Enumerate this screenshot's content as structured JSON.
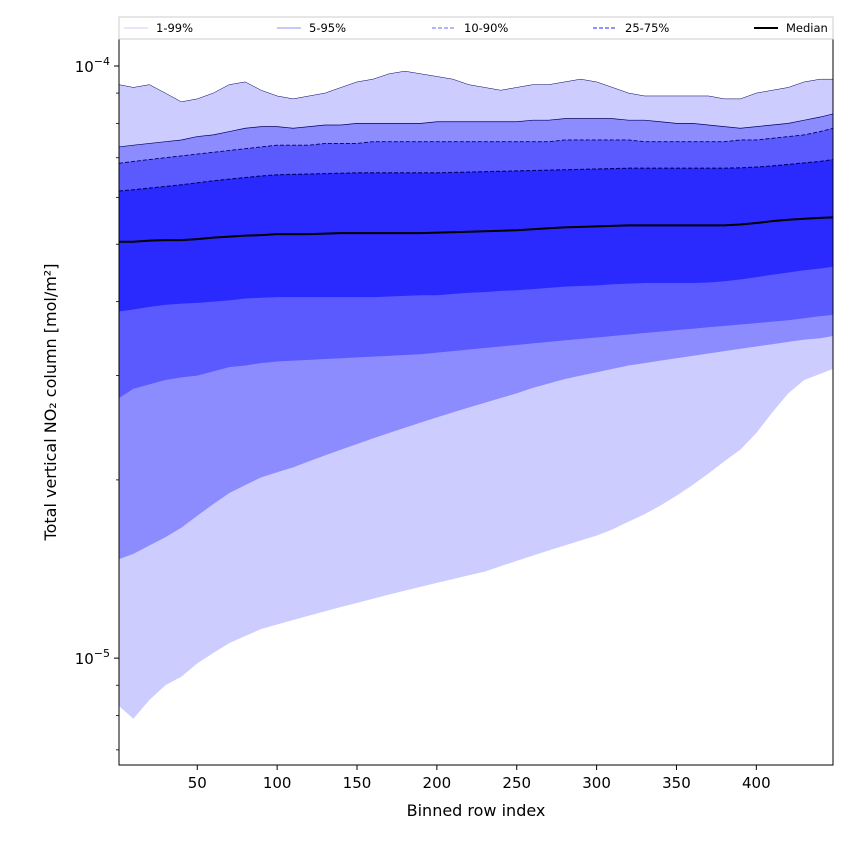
{
  "chart_data": {
    "type": "area",
    "title": "",
    "xlabel": "Binned row index",
    "ylabel": "Total vertical NO₂ column [mol/m²]",
    "xscale": "linear",
    "yscale": "log",
    "xlim": [
      1,
      448
    ],
    "ylim": [
      6.6e-06,
      0.0001115
    ],
    "x_ticks": [
      50,
      100,
      150,
      200,
      250,
      300,
      350,
      400
    ],
    "y_major_ticks": [
      {
        "value": 1e-05,
        "base": "10",
        "exp": "−5"
      },
      {
        "value": 0.0001,
        "base": "10",
        "exp": "−4"
      }
    ],
    "y_minor_ticks": [
      7e-06,
      8e-06,
      9e-06,
      2e-05,
      3e-05,
      4e-05,
      5e-05,
      6e-05,
      7e-05,
      8e-05,
      9e-05
    ],
    "grid": false,
    "legend": {
      "position": "top",
      "entries": [
        {
          "label": "1-99%",
          "color": "#d6d6ff",
          "style": "solid"
        },
        {
          "label": "5-95%",
          "color": "#a8a8ff",
          "style": "solid"
        },
        {
          "label": "10-90%",
          "color": "#8888ff",
          "style": "dashed"
        },
        {
          "label": "25-75%",
          "color": "#5555ff",
          "style": "dashed"
        },
        {
          "label": "Median",
          "color": "#000000",
          "style": "solid"
        }
      ]
    },
    "x": [
      1,
      10,
      20,
      30,
      40,
      50,
      60,
      70,
      80,
      90,
      100,
      110,
      120,
      130,
      140,
      150,
      160,
      170,
      180,
      190,
      200,
      210,
      220,
      230,
      240,
      250,
      260,
      270,
      280,
      290,
      300,
      310,
      320,
      330,
      340,
      350,
      360,
      370,
      380,
      390,
      400,
      410,
      420,
      430,
      440,
      448
    ],
    "bands": [
      {
        "name": "1-99%",
        "color": "#ccccff",
        "lower": [
          8.3e-06,
          7.9e-06,
          8.5e-06,
          9e-06,
          9.3e-06,
          9.8e-06,
          1.02e-05,
          1.06e-05,
          1.09e-05,
          1.12e-05,
          1.14e-05,
          1.16e-05,
          1.18e-05,
          1.2e-05,
          1.22e-05,
          1.24e-05,
          1.26e-05,
          1.28e-05,
          1.3e-05,
          1.32e-05,
          1.34e-05,
          1.36e-05,
          1.38e-05,
          1.4e-05,
          1.43e-05,
          1.46e-05,
          1.49e-05,
          1.52e-05,
          1.55e-05,
          1.58e-05,
          1.61e-05,
          1.65e-05,
          1.7e-05,
          1.75e-05,
          1.81e-05,
          1.88e-05,
          1.96e-05,
          2.05e-05,
          2.15e-05,
          2.25e-05,
          2.4e-05,
          2.6e-05,
          2.8e-05,
          2.95e-05,
          3.02e-05,
          3.08e-05
        ],
        "upper": [
          9.3e-05,
          9.2e-05,
          9.3e-05,
          9e-05,
          8.7e-05,
          8.8e-05,
          9e-05,
          9.3e-05,
          9.4e-05,
          9.1e-05,
          8.9e-05,
          8.8e-05,
          8.9e-05,
          9e-05,
          9.2e-05,
          9.4e-05,
          9.5e-05,
          9.7e-05,
          9.8e-05,
          9.7e-05,
          9.6e-05,
          9.5e-05,
          9.3e-05,
          9.2e-05,
          9.1e-05,
          9.2e-05,
          9.3e-05,
          9.3e-05,
          9.4e-05,
          9.5e-05,
          9.4e-05,
          9.2e-05,
          9e-05,
          8.9e-05,
          8.9e-05,
          8.9e-05,
          8.9e-05,
          8.9e-05,
          8.8e-05,
          8.8e-05,
          9e-05,
          9.1e-05,
          9.2e-05,
          9.4e-05,
          9.5e-05,
          9.5e-05
        ]
      },
      {
        "name": "5-95%",
        "color": "#8c8cff",
        "lower": [
          1.47e-05,
          1.5e-05,
          1.55e-05,
          1.6e-05,
          1.66e-05,
          1.74e-05,
          1.82e-05,
          1.9e-05,
          1.96e-05,
          2.02e-05,
          2.06e-05,
          2.1e-05,
          2.15e-05,
          2.2e-05,
          2.25e-05,
          2.3e-05,
          2.35e-05,
          2.4e-05,
          2.45e-05,
          2.5e-05,
          2.55e-05,
          2.6e-05,
          2.65e-05,
          2.7e-05,
          2.75e-05,
          2.8e-05,
          2.86e-05,
          2.91e-05,
          2.96e-05,
          3e-05,
          3.04e-05,
          3.08e-05,
          3.12e-05,
          3.15e-05,
          3.18e-05,
          3.21e-05,
          3.24e-05,
          3.27e-05,
          3.3e-05,
          3.33e-05,
          3.36e-05,
          3.39e-05,
          3.42e-05,
          3.45e-05,
          3.47e-05,
          3.5e-05
        ],
        "upper": [
          7.3e-05,
          7.35e-05,
          7.4e-05,
          7.45e-05,
          7.5e-05,
          7.6e-05,
          7.65e-05,
          7.75e-05,
          7.85e-05,
          7.9e-05,
          7.9e-05,
          7.85e-05,
          7.9e-05,
          7.95e-05,
          7.95e-05,
          8e-05,
          8e-05,
          8e-05,
          8e-05,
          8e-05,
          8.05e-05,
          8.05e-05,
          8.05e-05,
          8.05e-05,
          8.05e-05,
          8.05e-05,
          8.1e-05,
          8.1e-05,
          8.15e-05,
          8.15e-05,
          8.15e-05,
          8.15e-05,
          8.1e-05,
          8.1e-05,
          8.05e-05,
          8e-05,
          8e-05,
          7.95e-05,
          7.9e-05,
          7.85e-05,
          7.9e-05,
          7.95e-05,
          8e-05,
          8.1e-05,
          8.2e-05,
          8.3e-05
        ]
      },
      {
        "name": "10-90%",
        "color": "#5a5aff",
        "lower": [
          2.75e-05,
          2.85e-05,
          2.9e-05,
          2.95e-05,
          2.98e-05,
          3e-05,
          3.05e-05,
          3.1e-05,
          3.12e-05,
          3.15e-05,
          3.17e-05,
          3.18e-05,
          3.19e-05,
          3.2e-05,
          3.21e-05,
          3.22e-05,
          3.23e-05,
          3.24e-05,
          3.25e-05,
          3.26e-05,
          3.28e-05,
          3.3e-05,
          3.32e-05,
          3.34e-05,
          3.36e-05,
          3.38e-05,
          3.4e-05,
          3.42e-05,
          3.44e-05,
          3.46e-05,
          3.48e-05,
          3.5e-05,
          3.52e-05,
          3.54e-05,
          3.56e-05,
          3.58e-05,
          3.6e-05,
          3.62e-05,
          3.64e-05,
          3.66e-05,
          3.68e-05,
          3.7e-05,
          3.72e-05,
          3.75e-05,
          3.78e-05,
          3.8e-05
        ],
        "upper": [
          6.85e-05,
          6.9e-05,
          6.95e-05,
          7e-05,
          7.05e-05,
          7.1e-05,
          7.15e-05,
          7.2e-05,
          7.25e-05,
          7.3e-05,
          7.35e-05,
          7.35e-05,
          7.35e-05,
          7.4e-05,
          7.4e-05,
          7.4e-05,
          7.45e-05,
          7.45e-05,
          7.45e-05,
          7.45e-05,
          7.45e-05,
          7.45e-05,
          7.45e-05,
          7.45e-05,
          7.45e-05,
          7.45e-05,
          7.45e-05,
          7.45e-05,
          7.5e-05,
          7.5e-05,
          7.5e-05,
          7.5e-05,
          7.5e-05,
          7.45e-05,
          7.45e-05,
          7.45e-05,
          7.45e-05,
          7.45e-05,
          7.45e-05,
          7.5e-05,
          7.5e-05,
          7.55e-05,
          7.6e-05,
          7.65e-05,
          7.75e-05,
          7.85e-05
        ]
      },
      {
        "name": "25-75%",
        "color": "#2a2aff",
        "lower": [
          3.85e-05,
          3.88e-05,
          3.92e-05,
          3.95e-05,
          3.97e-05,
          3.98e-05,
          4e-05,
          4.02e-05,
          4.05e-05,
          4.06e-05,
          4.07e-05,
          4.07e-05,
          4.07e-05,
          4.07e-05,
          4.07e-05,
          4.07e-05,
          4.07e-05,
          4.08e-05,
          4.09e-05,
          4.1e-05,
          4.1e-05,
          4.12e-05,
          4.14e-05,
          4.15e-05,
          4.17e-05,
          4.18e-05,
          4.2e-05,
          4.22e-05,
          4.24e-05,
          4.25e-05,
          4.26e-05,
          4.28e-05,
          4.29e-05,
          4.3e-05,
          4.3e-05,
          4.3e-05,
          4.3e-05,
          4.31e-05,
          4.33e-05,
          4.36e-05,
          4.4e-05,
          4.44e-05,
          4.48e-05,
          4.52e-05,
          4.55e-05,
          4.58e-05
        ],
        "upper": [
          6.15e-05,
          6.18e-05,
          6.22e-05,
          6.26e-05,
          6.3e-05,
          6.35e-05,
          6.4e-05,
          6.44e-05,
          6.48e-05,
          6.52e-05,
          6.55e-05,
          6.56e-05,
          6.57e-05,
          6.58e-05,
          6.59e-05,
          6.6e-05,
          6.6e-05,
          6.6e-05,
          6.6e-05,
          6.6e-05,
          6.6e-05,
          6.61e-05,
          6.62e-05,
          6.63e-05,
          6.64e-05,
          6.65e-05,
          6.66e-05,
          6.67e-05,
          6.68e-05,
          6.69e-05,
          6.7e-05,
          6.71e-05,
          6.72e-05,
          6.72e-05,
          6.72e-05,
          6.72e-05,
          6.72e-05,
          6.72e-05,
          6.72e-05,
          6.73e-05,
          6.75e-05,
          6.78e-05,
          6.82e-05,
          6.86e-05,
          6.9e-05,
          6.95e-05
        ]
      }
    ],
    "median": {
      "name": "Median",
      "color": "#000000",
      "values": [
        5.05e-05,
        5.05e-05,
        5.07e-05,
        5.08e-05,
        5.08e-05,
        5.1e-05,
        5.13e-05,
        5.15e-05,
        5.17e-05,
        5.18e-05,
        5.2e-05,
        5.2e-05,
        5.2e-05,
        5.21e-05,
        5.22e-05,
        5.22e-05,
        5.22e-05,
        5.22e-05,
        5.22e-05,
        5.22e-05,
        5.23e-05,
        5.24e-05,
        5.25e-05,
        5.26e-05,
        5.27e-05,
        5.28e-05,
        5.3e-05,
        5.32e-05,
        5.34e-05,
        5.35e-05,
        5.36e-05,
        5.37e-05,
        5.38e-05,
        5.38e-05,
        5.38e-05,
        5.38e-05,
        5.38e-05,
        5.38e-05,
        5.38e-05,
        5.4e-05,
        5.43e-05,
        5.47e-05,
        5.5e-05,
        5.52e-05,
        5.54e-05,
        5.55e-05
      ]
    }
  }
}
